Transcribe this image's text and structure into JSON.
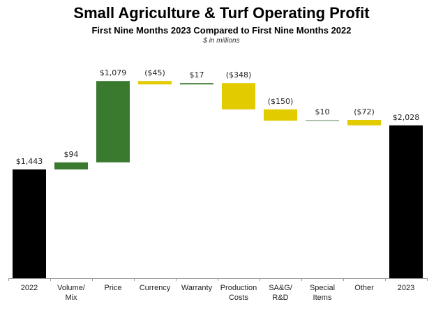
{
  "chart_data": {
    "type": "bar",
    "subtype": "waterfall",
    "title": "Small Agriculture & Turf Operating Profit",
    "subtitle": "First Nine Months 2023 Compared to First Nine Months 2022",
    "units_note": "$ in millions",
    "xlabel": "",
    "ylabel": "",
    "ylim": [
      0,
      2350
    ],
    "grid": false,
    "categories": [
      [
        "2022"
      ],
      [
        "Volume/",
        "Mix"
      ],
      [
        "Price"
      ],
      [
        "Currency"
      ],
      [
        "Warranty"
      ],
      [
        "Production",
        "Costs"
      ],
      [
        "SA&G/",
        "R&D"
      ],
      [
        "Special",
        "Items"
      ],
      [
        "Other"
      ],
      [
        "2023"
      ]
    ],
    "values": [
      1443,
      94,
      1079,
      -45,
      17,
      -348,
      -150,
      10,
      -72,
      2028
    ],
    "kinds": [
      "total",
      "delta",
      "delta",
      "delta",
      "delta",
      "delta",
      "delta",
      "delta",
      "delta",
      "total"
    ],
    "data_labels": [
      "$1,443",
      "$94",
      "$1,079",
      "($45)",
      "$17",
      "($348)",
      "($150)",
      "$10",
      "($72)",
      "$2,028"
    ],
    "colors": {
      "total": "#000000",
      "increase": "#3a7a2e",
      "decrease": "#e2cc00",
      "small_increase": "#9bb89a"
    }
  }
}
